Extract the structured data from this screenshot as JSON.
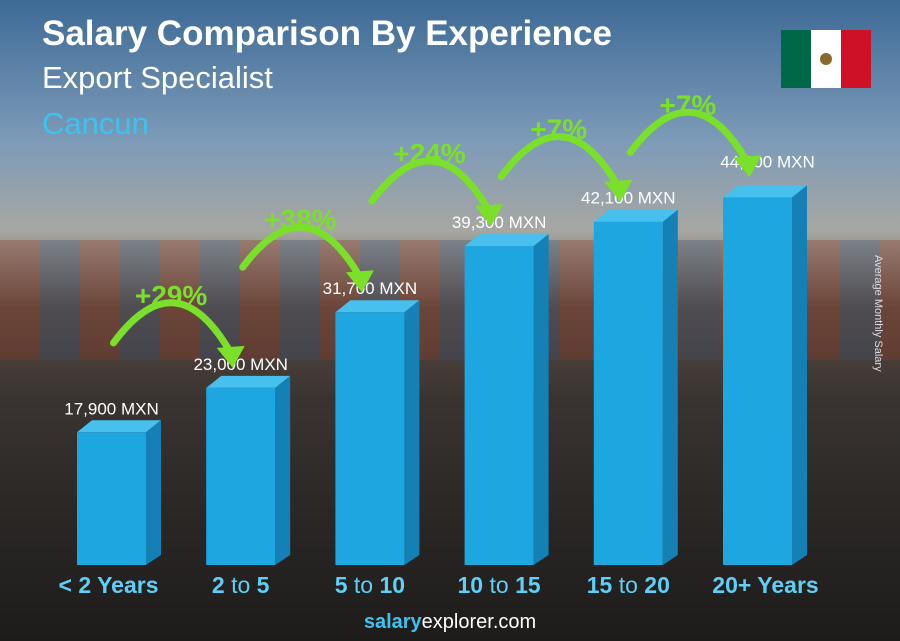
{
  "header": {
    "title": "Salary Comparison By Experience",
    "subtitle": "Export Specialist",
    "city": "Cancun"
  },
  "flag": {
    "colors": [
      "#006847",
      "#ffffff",
      "#ce1126"
    ]
  },
  "footer": {
    "brand_bold": "salary",
    "brand_rest": "explorer",
    "domain": ".com"
  },
  "chart_data": {
    "type": "bar",
    "ylabel": "Average Monthly Salary",
    "categories": [
      "< 2 Years",
      "2 to 5",
      "5 to 10",
      "10 to 15",
      "15 to 20",
      "20+ Years"
    ],
    "values": [
      17900,
      23000,
      31700,
      39300,
      42100,
      44900
    ],
    "value_labels": [
      "17,900 MXN",
      "23,000 MXN",
      "31,700 MXN",
      "39,300 MXN",
      "42,100 MXN",
      "44,900 MXN"
    ],
    "changes": [
      "+29%",
      "+38%",
      "+24%",
      "+7%",
      "+7%"
    ],
    "bar_color": "#1ea6e0",
    "change_color": "#7be02a"
  }
}
